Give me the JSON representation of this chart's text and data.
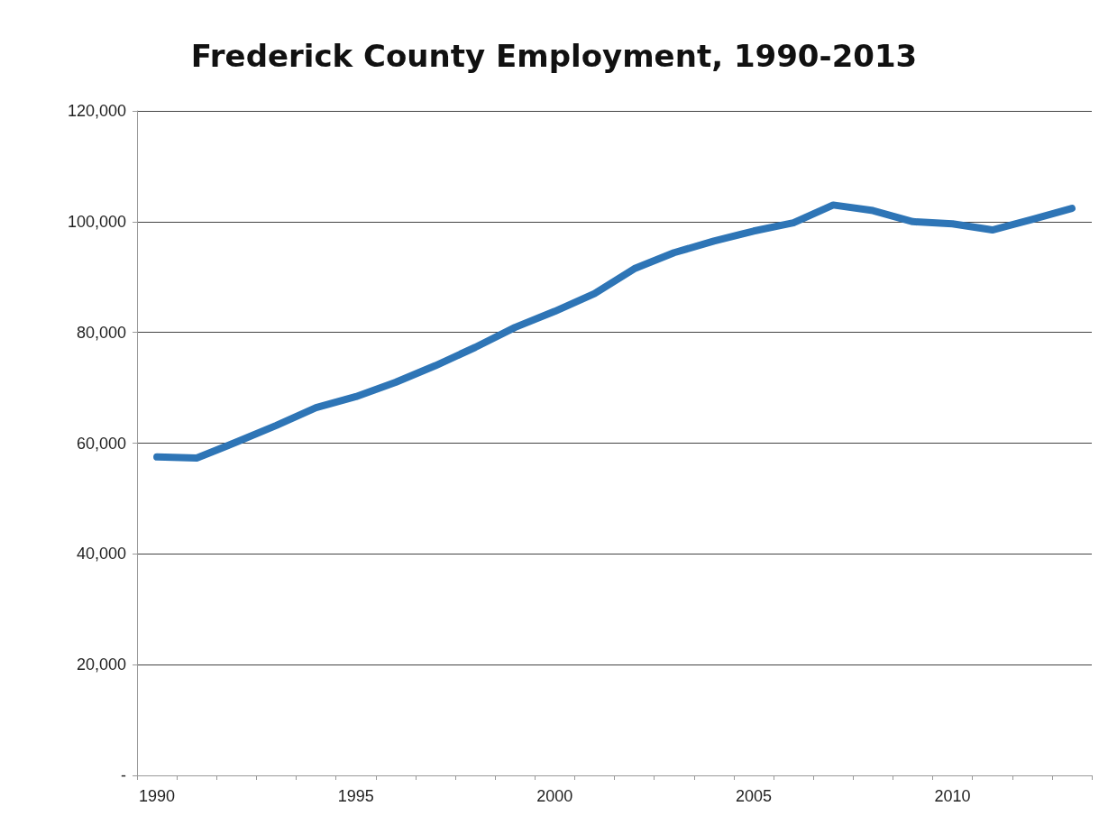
{
  "chart_data": {
    "type": "line",
    "title": "Frederick County Employment, 1990-2013",
    "categories": [
      "1990",
      null,
      null,
      null,
      null,
      "1995",
      null,
      null,
      null,
      null,
      "2000",
      null,
      null,
      null,
      null,
      "2005",
      null,
      null,
      null,
      null,
      "2010",
      null,
      null,
      null
    ],
    "series": [
      {
        "color": "#2e75b6",
        "values": [
          57500,
          57300,
          60200,
          63200,
          66400,
          68400,
          71000,
          74000,
          77300,
          80900,
          83800,
          87000,
          91500,
          94400,
          96500,
          98300,
          99800,
          103000,
          102000,
          100000,
          99600,
          98500,
          100400,
          102400
        ]
      }
    ],
    "ylim": [
      0,
      120000
    ],
    "yticks": [
      {
        "value": 0,
        "label": "-"
      },
      {
        "value": 20000,
        "label": "20,000"
      },
      {
        "value": 40000,
        "label": "40,000"
      },
      {
        "value": 60000,
        "label": "60,000"
      },
      {
        "value": 80000,
        "label": "80,000"
      },
      {
        "value": 100000,
        "label": "100,000"
      },
      {
        "value": 120000,
        "label": "120,000"
      }
    ],
    "grid": "y",
    "marker": "none",
    "line_style": "solid"
  }
}
